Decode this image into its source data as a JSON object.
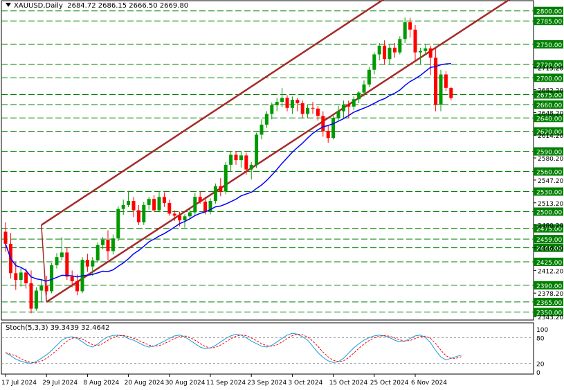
{
  "header": {
    "symbol": "XAUUSD,Daily",
    "ohlc": "2684.72 2686.15 2666.50 2669.80"
  },
  "stoch_header": "Stoch(5,3,3) 39.3439 32.4642",
  "colors": {
    "bull": "#009900",
    "bear": "#ff0000",
    "ma": "#0000ff",
    "channel": "#a52a2a",
    "level": "#008000",
    "label_bg": "#008000",
    "stoch_main": "#1e9bd7",
    "stoch_signal": "#ff0000"
  },
  "chart_data": {
    "type": "candlestick",
    "title": "XAUUSD,Daily",
    "ohlc_readout": [
      2684.72,
      2686.15,
      2666.5,
      2669.8
    ],
    "price_axis_ticks": [
      "2343.20",
      "2378.20",
      "2412.20",
      "2446.00",
      "2480.20",
      "2513.20",
      "2547.20",
      "2580.20",
      "2614.20",
      "2648.20",
      "2682.20",
      "2715.20"
    ],
    "levels": [
      "2800.00",
      "2785.00",
      "2750.00",
      "2720.00",
      "2700.00",
      "2675.00",
      "2660.00",
      "2640.00",
      "2620.00",
      "2590.00",
      "2560.00",
      "2530.00",
      "2500.00",
      "2475.00",
      "2459.00",
      "2446.00",
      "2425.00",
      "2390.00",
      "2365.00",
      "2350.00"
    ],
    "date_labels": [
      {
        "label": "17 Jul 2024",
        "idx": 0
      },
      {
        "label": "29 Jul 2024",
        "idx": 8
      },
      {
        "label": "8 Aug 2024",
        "idx": 16
      },
      {
        "label": "20 Aug 2024",
        "idx": 24
      },
      {
        "label": "30 Aug 2024",
        "idx": 32
      },
      {
        "label": "11 Sep 2024",
        "idx": 40
      },
      {
        "label": "23 Sep 2024",
        "idx": 48
      },
      {
        "label": "3 Oct 2024",
        "idx": 56
      },
      {
        "label": "15 Oct 2024",
        "idx": 64
      },
      {
        "label": "25 Oct 2024",
        "idx": 72
      },
      {
        "label": "6 Nov 2024",
        "idx": 80
      }
    ],
    "candles": [
      [
        2470,
        2484,
        2440,
        2452
      ],
      [
        2452,
        2468,
        2400,
        2408
      ],
      [
        2408,
        2425,
        2383,
        2398
      ],
      [
        2398,
        2416,
        2388,
        2409
      ],
      [
        2409,
        2415,
        2385,
        2393
      ],
      [
        2393,
        2412,
        2348,
        2355
      ],
      [
        2355,
        2387,
        2352,
        2382
      ],
      [
        2382,
        2398,
        2365,
        2389
      ],
      [
        2389,
        2404,
        2375,
        2381
      ],
      [
        2381,
        2423,
        2378,
        2420
      ],
      [
        2420,
        2438,
        2415,
        2432
      ],
      [
        2432,
        2462,
        2427,
        2439
      ],
      [
        2439,
        2447,
        2398,
        2403
      ],
      [
        2403,
        2412,
        2387,
        2396
      ],
      [
        2396,
        2406,
        2375,
        2381
      ],
      [
        2381,
        2432,
        2378,
        2428
      ],
      [
        2428,
        2437,
        2410,
        2418
      ],
      [
        2418,
        2432,
        2404,
        2427
      ],
      [
        2427,
        2454,
        2424,
        2450
      ],
      [
        2450,
        2462,
        2444,
        2458
      ],
      [
        2458,
        2472,
        2428,
        2441
      ],
      [
        2441,
        2466,
        2436,
        2460
      ],
      [
        2460,
        2508,
        2456,
        2504
      ],
      [
        2504,
        2518,
        2495,
        2510
      ],
      [
        2510,
        2531,
        2507,
        2516
      ],
      [
        2516,
        2522,
        2492,
        2502
      ],
      [
        2502,
        2510,
        2480,
        2484
      ],
      [
        2484,
        2514,
        2480,
        2510
      ],
      [
        2510,
        2522,
        2503,
        2519
      ],
      [
        2519,
        2525,
        2500,
        2502
      ],
      [
        2502,
        2530,
        2500,
        2522
      ],
      [
        2522,
        2529,
        2507,
        2513
      ],
      [
        2513,
        2518,
        2494,
        2497
      ],
      [
        2497,
        2502,
        2486,
        2494
      ],
      [
        2494,
        2500,
        2478,
        2487
      ],
      [
        2487,
        2496,
        2476,
        2493
      ],
      [
        2493,
        2504,
        2488,
        2499
      ],
      [
        2499,
        2528,
        2494,
        2522
      ],
      [
        2522,
        2530,
        2512,
        2515
      ],
      [
        2515,
        2522,
        2496,
        2500
      ],
      [
        2500,
        2520,
        2496,
        2516
      ],
      [
        2516,
        2542,
        2512,
        2538
      ],
      [
        2538,
        2550,
        2523,
        2530
      ],
      [
        2530,
        2574,
        2526,
        2570
      ],
      [
        2570,
        2590,
        2560,
        2585
      ],
      [
        2585,
        2590,
        2570,
        2577
      ],
      [
        2577,
        2590,
        2566,
        2584
      ],
      [
        2584,
        2588,
        2555,
        2563
      ],
      [
        2563,
        2574,
        2548,
        2570
      ],
      [
        2570,
        2618,
        2565,
        2615
      ],
      [
        2615,
        2638,
        2608,
        2630
      ],
      [
        2630,
        2650,
        2625,
        2646
      ],
      [
        2646,
        2663,
        2638,
        2659
      ],
      [
        2659,
        2670,
        2650,
        2664
      ],
      [
        2664,
        2685,
        2656,
        2670
      ],
      [
        2670,
        2674,
        2650,
        2655
      ],
      [
        2655,
        2672,
        2646,
        2667
      ],
      [
        2667,
        2670,
        2650,
        2662
      ],
      [
        2662,
        2666,
        2640,
        2646
      ],
      [
        2646,
        2660,
        2640,
        2655
      ],
      [
        2655,
        2664,
        2646,
        2654
      ],
      [
        2654,
        2658,
        2636,
        2643
      ],
      [
        2643,
        2650,
        2612,
        2620
      ],
      [
        2620,
        2628,
        2603,
        2610
      ],
      [
        2610,
        2645,
        2608,
        2640
      ],
      [
        2640,
        2658,
        2636,
        2650
      ],
      [
        2650,
        2666,
        2640,
        2660
      ],
      [
        2660,
        2666,
        2640,
        2657
      ],
      [
        2657,
        2672,
        2652,
        2668
      ],
      [
        2668,
        2680,
        2662,
        2678
      ],
      [
        2678,
        2696,
        2672,
        2690
      ],
      [
        2690,
        2716,
        2686,
        2712
      ],
      [
        2712,
        2738,
        2705,
        2735
      ],
      [
        2735,
        2752,
        2726,
        2748
      ],
      [
        2748,
        2756,
        2720,
        2728
      ],
      [
        2728,
        2750,
        2720,
        2745
      ],
      [
        2745,
        2752,
        2730,
        2738
      ],
      [
        2738,
        2762,
        2735,
        2758
      ],
      [
        2758,
        2790,
        2752,
        2783
      ],
      [
        2783,
        2790,
        2760,
        2772
      ],
      [
        2772,
        2779,
        2725,
        2738
      ],
      [
        2738,
        2745,
        2720,
        2740
      ],
      [
        2740,
        2750,
        2734,
        2744
      ],
      [
        2744,
        2748,
        2704,
        2730
      ],
      [
        2730,
        2745,
        2650,
        2660
      ],
      [
        2660,
        2712,
        2650,
        2705
      ],
      [
        2705,
        2710,
        2680,
        2685
      ],
      [
        2684.72,
        2686.15,
        2666.5,
        2669.8
      ]
    ],
    "ma_period": 20,
    "channel": {
      "upper": {
        "from": {
          "idx": 7,
          "price": 2480
        },
        "to": {
          "idx": 73,
          "price": 2813
        }
      },
      "lower": {
        "from": {
          "idx": 8,
          "price": 2365
        },
        "to": {
          "idx": 95,
          "price": 2800
        }
      }
    },
    "stochastic": {
      "label": "Stoch(5,3,3)",
      "main": 39.3439,
      "signal": 32.4642,
      "levels": [
        80,
        20
      ],
      "scale_labels": [
        "100",
        "80",
        "20",
        "0"
      ],
      "k": [
        45,
        38,
        30,
        25,
        22,
        20,
        24,
        32,
        40,
        50,
        62,
        74,
        80,
        82,
        78,
        70,
        62,
        58,
        65,
        75,
        82,
        85,
        86,
        84,
        78,
        74,
        68,
        62,
        58,
        60,
        66,
        72,
        78,
        84,
        86,
        82,
        74,
        66,
        58,
        54,
        56,
        62,
        70,
        78,
        84,
        88,
        86,
        80,
        72,
        66,
        60,
        58,
        62,
        70,
        78,
        86,
        90,
        88,
        82,
        74,
        60,
        45,
        34,
        26,
        22,
        24,
        32,
        44,
        56,
        66,
        74,
        80,
        84,
        86,
        84,
        80,
        74,
        70,
        72,
        78,
        84,
        86,
        80,
        68,
        50,
        35,
        28,
        32,
        36,
        39
      ]
    }
  }
}
